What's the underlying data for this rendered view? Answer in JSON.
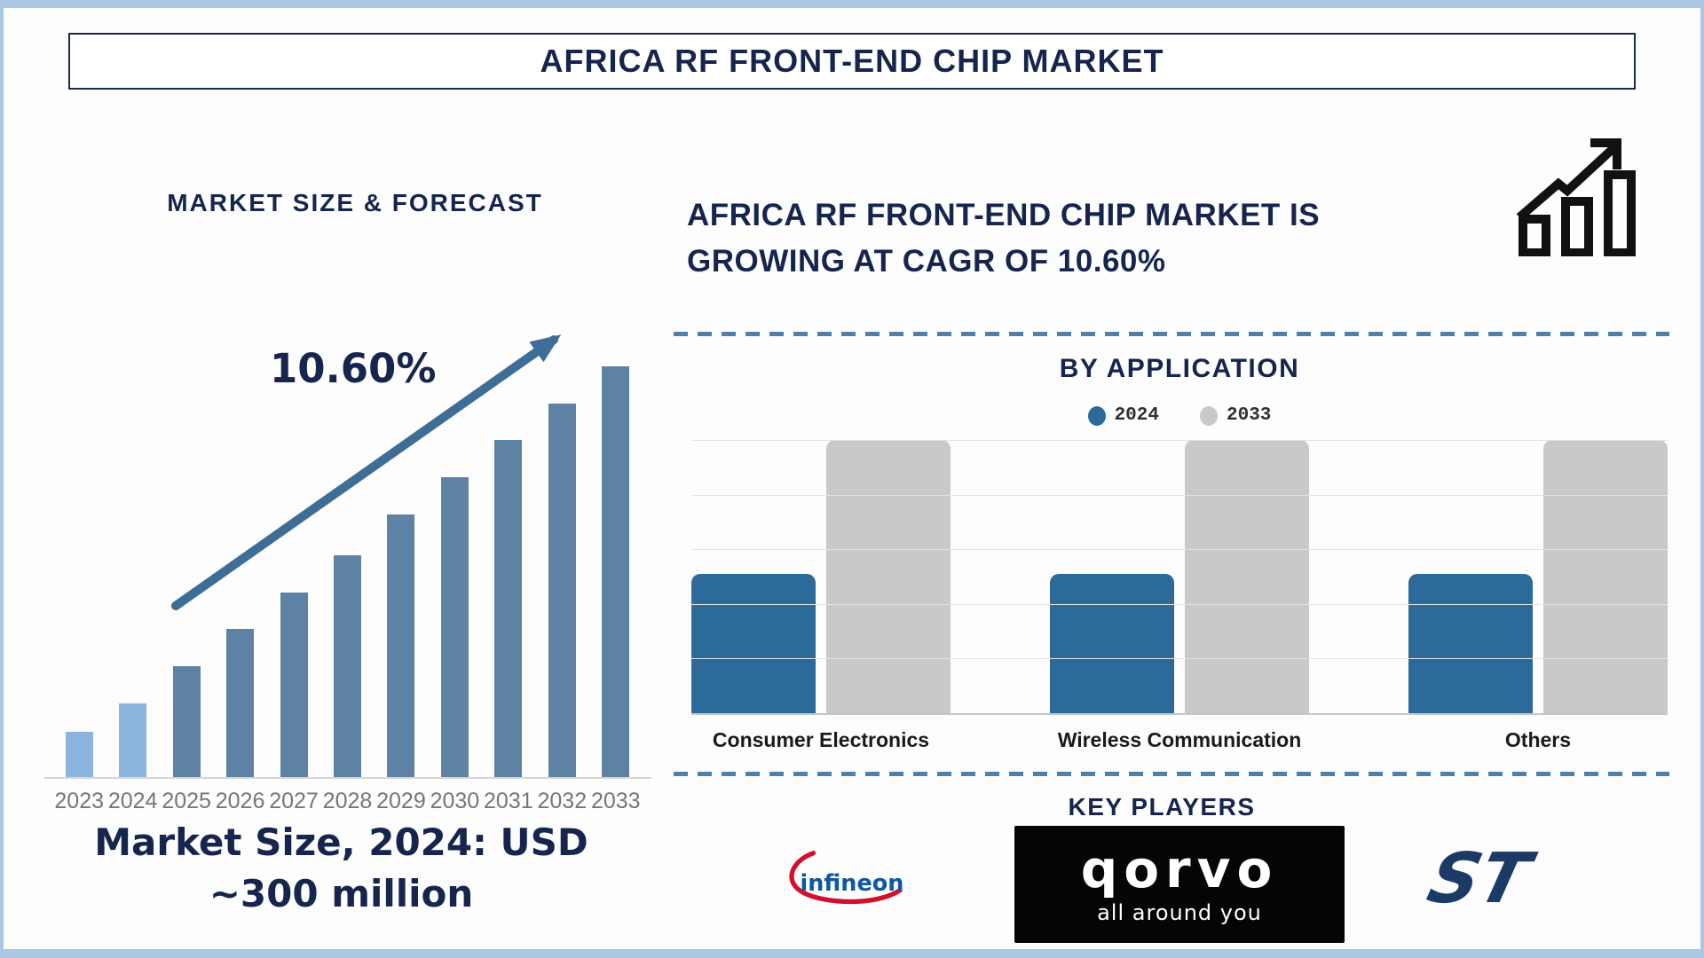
{
  "page": {
    "title": "AFRICA RF FRONT-END CHIP MARKET"
  },
  "left_panel": {
    "chart_title": "MARKET SIZE & FORECAST",
    "cagr_label": "10.60%",
    "market_size_note": "Market Size, 2024: USD ~300 million"
  },
  "right_panel": {
    "headline_lines": [
      "AFRICA RF FRONT-END CHIP MARKET IS",
      "GROWING AT CAGR OF 10.60%"
    ],
    "by_application_title": "BY APPLICATION",
    "key_players_title": "KEY PLAYERS"
  },
  "logos": {
    "infineon_text": "infineon",
    "qorvo_text": "qorvo",
    "qorvo_tagline": "all around you",
    "st_text": "ST"
  },
  "colors": {
    "navy": "#16254E",
    "steel_arrow": "#3E6D96",
    "forecast_bar_light": "#8CB5DE",
    "forecast_bar_dark": "#5E82A4",
    "app_bar_2024": "#2B6A99",
    "app_bar_2033": "#C9C9C9",
    "frame": "#AAC7E4",
    "dashed_divider": "#4F81A8",
    "year_labels": "#767676",
    "infineon_blue": "#0E57A4",
    "infineon_red": "#D40F2C",
    "st_navy": "#1B3A66"
  },
  "chart_data": [
    {
      "id": "market_size_forecast",
      "type": "bar",
      "title": "MARKET SIZE & FORECAST",
      "categories": [
        "2023",
        "2024",
        "2025",
        "2026",
        "2027",
        "2028",
        "2029",
        "2030",
        "2031",
        "2032",
        "2033"
      ],
      "values": [
        11,
        18,
        27,
        36,
        45,
        54,
        64,
        73,
        82,
        91,
        100
      ],
      "value_note": "relative bar heights in % of tallest bar; no numeric axis shown; anchor: 2024 = USD ~300 million; CAGR 10.60%",
      "highlight_years_light": [
        "2023",
        "2024"
      ],
      "annotation": "10.60%",
      "grid": false,
      "xlabel": "",
      "ylabel": ""
    },
    {
      "id": "by_application",
      "type": "bar",
      "title": "BY APPLICATION",
      "categories": [
        "Consumer Electronics",
        "Wireless Communication",
        "Others"
      ],
      "series": [
        {
          "name": "2024",
          "values": [
            51,
            51,
            51
          ]
        },
        {
          "name": "2033",
          "values": [
            100,
            100,
            100
          ]
        }
      ],
      "value_note": "relative bar heights in % of plot height; no numeric axis shown",
      "legend_position": "top",
      "grid": true
    }
  ]
}
